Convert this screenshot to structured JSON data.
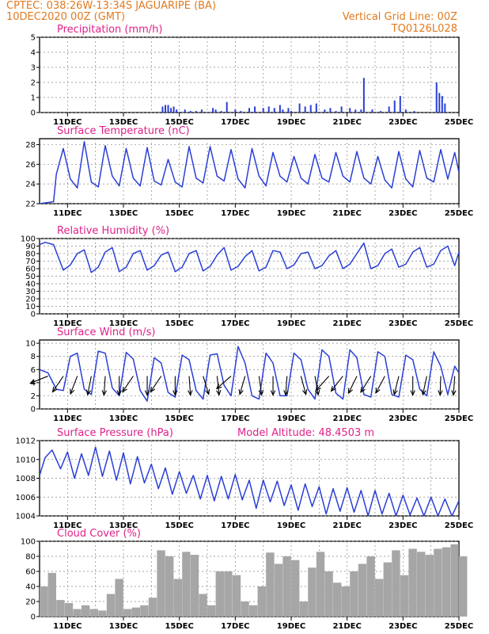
{
  "header": {
    "line1": "CPTEC:   038:26W-13:34S   JAGUARIPE (BA)",
    "line2": "10DEC2020 00Z (GMT)",
    "right1": "Vertical Grid Line: 00Z",
    "right2": "TQ0126L028"
  },
  "colors": {
    "header": "#e07a1f",
    "title": "#e0218a",
    "line": "#2a3fd6",
    "bar": "#2a3fd6",
    "cloud": "#a6a6a6",
    "grid": "#888888"
  },
  "x_ticks": [
    "11DEC",
    "13DEC",
    "15DEC",
    "17DEC",
    "19DEC",
    "21DEC",
    "23DEC",
    "25DEC"
  ],
  "x_range": [
    0,
    15
  ],
  "chart_data": [
    {
      "type": "bar",
      "title": "Precipitation (mm/h)",
      "ylim": [
        0,
        5
      ],
      "yticks": [
        0,
        1,
        2,
        3,
        4,
        5
      ],
      "x": [
        4.4,
        4.5,
        4.6,
        4.7,
        4.8,
        4.9,
        5.2,
        5.4,
        5.6,
        5.8,
        6.2,
        6.3,
        6.5,
        6.7,
        7.0,
        7.2,
        7.5,
        7.7,
        8.0,
        8.2,
        8.4,
        8.6,
        8.7,
        8.9,
        9.0,
        9.3,
        9.5,
        9.7,
        9.9,
        10.2,
        10.4,
        10.6,
        10.8,
        11.1,
        11.3,
        11.5,
        11.6,
        11.9,
        12.2,
        12.5,
        12.7,
        12.9,
        13.1,
        13.4,
        14.2,
        14.3,
        14.4,
        14.5
      ],
      "values": [
        0.4,
        0.5,
        0.5,
        0.3,
        0.4,
        0.2,
        0.2,
        0.1,
        0.1,
        0.2,
        0.3,
        0.2,
        0.1,
        0.7,
        0.2,
        0.1,
        0.3,
        0.4,
        0.3,
        0.4,
        0.3,
        0.5,
        0.2,
        0.3,
        0.1,
        0.6,
        0.4,
        0.5,
        0.6,
        0.2,
        0.3,
        0.1,
        0.4,
        0.3,
        0.2,
        0.2,
        2.3,
        0.2,
        0.1,
        0.4,
        0.8,
        1.1,
        0.2,
        0.1,
        2.0,
        1.3,
        1.1,
        0.6
      ]
    },
    {
      "type": "line",
      "title": "Surface Temperature (nC)",
      "ylim": [
        22,
        28.6
      ],
      "yticks": [
        22,
        24,
        26,
        28
      ],
      "x": [
        0,
        0.5,
        0.6,
        0.85,
        1.1,
        1.35,
        1.6,
        1.85,
        2.1,
        2.35,
        2.6,
        2.85,
        3.1,
        3.35,
        3.6,
        3.85,
        4.1,
        4.35,
        4.6,
        4.85,
        5.1,
        5.35,
        5.6,
        5.85,
        6.1,
        6.35,
        6.6,
        6.85,
        7.1,
        7.35,
        7.6,
        7.85,
        8.1,
        8.35,
        8.6,
        8.85,
        9.1,
        9.35,
        9.6,
        9.85,
        10.1,
        10.35,
        10.6,
        10.85,
        11.1,
        11.35,
        11.6,
        11.85,
        12.1,
        12.35,
        12.6,
        12.85,
        13.1,
        13.35,
        13.6,
        13.85,
        14.1,
        14.35,
        14.6,
        14.85,
        15.0
      ],
      "values": [
        22.0,
        22.2,
        25.0,
        27.6,
        24.5,
        23.6,
        28.3,
        24.2,
        23.7,
        27.9,
        24.8,
        23.8,
        27.6,
        24.6,
        23.8,
        27.7,
        24.3,
        23.9,
        26.5,
        24.2,
        23.7,
        27.8,
        24.6,
        24.1,
        27.8,
        24.8,
        24.3,
        27.5,
        24.5,
        23.6,
        27.6,
        24.8,
        23.8,
        27.2,
        24.8,
        24.2,
        26.8,
        24.6,
        24.0,
        27.0,
        24.6,
        24.2,
        27.2,
        24.8,
        24.2,
        27.3,
        24.6,
        24.0,
        26.8,
        24.4,
        23.6,
        27.3,
        24.5,
        23.7,
        27.4,
        24.6,
        24.2,
        27.5,
        24.5,
        27.2,
        25.2
      ]
    },
    {
      "type": "line",
      "title": "Relative Humidity (%)",
      "ylim": [
        0,
        100
      ],
      "yticks": [
        0,
        10,
        20,
        30,
        40,
        50,
        60,
        70,
        80,
        90,
        100
      ],
      "x": [
        0,
        0.2,
        0.5,
        0.85,
        1.1,
        1.35,
        1.6,
        1.85,
        2.1,
        2.35,
        2.6,
        2.85,
        3.1,
        3.35,
        3.6,
        3.85,
        4.1,
        4.35,
        4.6,
        4.85,
        5.1,
        5.35,
        5.6,
        5.85,
        6.1,
        6.35,
        6.6,
        6.85,
        7.1,
        7.35,
        7.6,
        7.85,
        8.1,
        8.35,
        8.6,
        8.85,
        9.1,
        9.35,
        9.6,
        9.85,
        10.1,
        10.35,
        10.6,
        10.85,
        11.1,
        11.35,
        11.6,
        11.85,
        12.1,
        12.35,
        12.6,
        12.85,
        13.1,
        13.35,
        13.6,
        13.85,
        14.1,
        14.35,
        14.6,
        14.85,
        15.0
      ],
      "values": [
        92,
        95,
        92,
        58,
        65,
        80,
        85,
        55,
        62,
        82,
        88,
        56,
        62,
        80,
        84,
        58,
        64,
        78,
        82,
        56,
        62,
        80,
        84,
        57,
        63,
        78,
        88,
        58,
        63,
        76,
        84,
        57,
        62,
        84,
        82,
        60,
        65,
        80,
        82,
        60,
        64,
        77,
        84,
        60,
        66,
        80,
        94,
        60,
        64,
        80,
        86,
        62,
        66,
        82,
        88,
        62,
        66,
        84,
        90,
        64,
        82
      ]
    },
    {
      "type": "line",
      "title": "Surface Wind (m/s)",
      "ylim": [
        0,
        10.5
      ],
      "yticks": [
        0,
        2,
        4,
        6,
        8,
        10
      ],
      "x": [
        0,
        0.3,
        0.6,
        0.85,
        1.1,
        1.35,
        1.6,
        1.85,
        2.1,
        2.35,
        2.6,
        2.85,
        3.1,
        3.35,
        3.6,
        3.85,
        4.1,
        4.35,
        4.6,
        4.85,
        5.1,
        5.35,
        5.6,
        5.85,
        6.1,
        6.35,
        6.6,
        6.85,
        7.1,
        7.35,
        7.6,
        7.85,
        8.1,
        8.35,
        8.6,
        8.85,
        9.1,
        9.35,
        9.6,
        9.85,
        10.1,
        10.35,
        10.6,
        10.85,
        11.1,
        11.35,
        11.6,
        11.85,
        12.1,
        12.35,
        12.6,
        12.85,
        13.1,
        13.35,
        13.6,
        13.85,
        14.1,
        14.35,
        14.6,
        14.85,
        15.0
      ],
      "values": [
        6.0,
        5.5,
        3.0,
        2.8,
        8.0,
        8.5,
        3.0,
        2.2,
        8.8,
        8.5,
        3.2,
        2.0,
        8.6,
        7.6,
        2.8,
        1.2,
        7.8,
        7.0,
        2.5,
        1.8,
        8.2,
        7.5,
        2.8,
        1.5,
        8.2,
        8.4,
        3.6,
        2.0,
        9.5,
        7.0,
        2.0,
        1.5,
        8.5,
        7.0,
        2.0,
        2.0,
        8.5,
        7.5,
        3.0,
        1.5,
        9.0,
        8.0,
        2.4,
        1.5,
        9.0,
        7.8,
        2.2,
        1.8,
        8.7,
        8.0,
        2.2,
        1.8,
        8.2,
        7.5,
        3.0,
        2.0,
        8.7,
        6.5,
        2.2,
        6.5,
        5.5
      ],
      "arrows": [
        [
          0.3,
          202
        ],
        [
          0.85,
          236
        ],
        [
          1.35,
          249
        ],
        [
          1.85,
          259
        ],
        [
          2.35,
          266
        ],
        [
          2.85,
          270
        ],
        [
          3.35,
          236
        ],
        [
          3.85,
          270
        ],
        [
          4.35,
          236
        ],
        [
          4.85,
          270
        ],
        [
          5.35,
          274
        ],
        [
          5.85,
          287
        ],
        [
          6.35,
          276
        ],
        [
          6.85,
          221
        ],
        [
          7.35,
          254
        ],
        [
          7.85,
          278
        ],
        [
          8.35,
          270
        ],
        [
          8.85,
          266
        ],
        [
          9.35,
          285
        ],
        [
          9.85,
          280
        ],
        [
          10.35,
          228
        ],
        [
          10.85,
          232
        ],
        [
          11.35,
          244
        ],
        [
          11.85,
          238
        ],
        [
          12.35,
          242
        ],
        [
          12.85,
          256
        ],
        [
          13.35,
          270
        ],
        [
          13.85,
          258
        ],
        [
          14.35,
          268
        ],
        [
          14.85,
          266
        ]
      ]
    },
    {
      "type": "line",
      "title": "Surface Pressure (hPa)",
      "subtitle": "Model Altitude: 48.4503 m",
      "ylim": [
        1004,
        1012
      ],
      "yticks": [
        1004,
        1006,
        1008,
        1010,
        1012
      ],
      "x": [
        0,
        0.2,
        0.45,
        0.75,
        1.0,
        1.25,
        1.5,
        1.75,
        2.0,
        2.25,
        2.5,
        2.75,
        3.0,
        3.25,
        3.5,
        3.75,
        4.0,
        4.25,
        4.5,
        4.75,
        5.0,
        5.25,
        5.5,
        5.75,
        6.0,
        6.25,
        6.5,
        6.75,
        7.0,
        7.25,
        7.5,
        7.75,
        8.0,
        8.25,
        8.5,
        8.75,
        9.0,
        9.25,
        9.5,
        9.75,
        10.0,
        10.25,
        10.5,
        10.75,
        11.0,
        11.25,
        11.5,
        11.75,
        12.0,
        12.25,
        12.5,
        12.75,
        13.0,
        13.25,
        13.5,
        13.75,
        14.0,
        14.25,
        14.5,
        14.75,
        15.0
      ],
      "values": [
        1008.3,
        1010.2,
        1011.0,
        1009.0,
        1010.8,
        1008.0,
        1010.6,
        1008.3,
        1011.3,
        1008.2,
        1010.9,
        1007.8,
        1010.7,
        1007.4,
        1010.3,
        1007.5,
        1009.5,
        1006.9,
        1009.1,
        1006.3,
        1008.7,
        1006.4,
        1008.3,
        1005.8,
        1008.3,
        1005.6,
        1008.2,
        1005.8,
        1008.4,
        1005.7,
        1007.8,
        1004.8,
        1007.8,
        1005.5,
        1007.7,
        1005.1,
        1007.3,
        1004.6,
        1007.4,
        1005.0,
        1007.1,
        1004.2,
        1006.9,
        1004.5,
        1007.0,
        1004.4,
        1006.7,
        1004.0,
        1006.7,
        1004.2,
        1006.4,
        1004.0,
        1006.2,
        1004.1,
        1005.9,
        1004.0,
        1006.0,
        1004.0,
        1005.8,
        1004.0,
        1005.6
      ],
      "ylabel": ""
    },
    {
      "type": "area",
      "title": "Cloud Cover (%)",
      "ylim": [
        0,
        100
      ],
      "yticks": [
        0,
        20,
        40,
        60,
        80,
        100
      ],
      "x": [
        0,
        0.3,
        0.6,
        0.9,
        1.2,
        1.5,
        1.8,
        2.1,
        2.4,
        2.7,
        3.0,
        3.3,
        3.6,
        3.9,
        4.2,
        4.5,
        4.8,
        5.1,
        5.4,
        5.7,
        6.0,
        6.3,
        6.6,
        6.9,
        7.2,
        7.5,
        7.8,
        8.1,
        8.4,
        8.7,
        9.0,
        9.3,
        9.6,
        9.9,
        10.2,
        10.5,
        10.8,
        11.1,
        11.4,
        11.7,
        12.0,
        12.3,
        12.6,
        12.9,
        13.2,
        13.5,
        13.8,
        14.1,
        14.4,
        14.7,
        15.0
      ],
      "values": [
        40,
        58,
        22,
        18,
        10,
        15,
        10,
        8,
        30,
        50,
        10,
        12,
        15,
        25,
        88,
        80,
        50,
        86,
        82,
        30,
        15,
        60,
        60,
        55,
        20,
        15,
        40,
        85,
        70,
        80,
        75,
        20,
        65,
        86,
        60,
        45,
        40,
        60,
        70,
        80,
        50,
        72,
        88,
        55,
        90,
        86,
        82,
        90,
        92,
        96,
        80
      ]
    }
  ]
}
